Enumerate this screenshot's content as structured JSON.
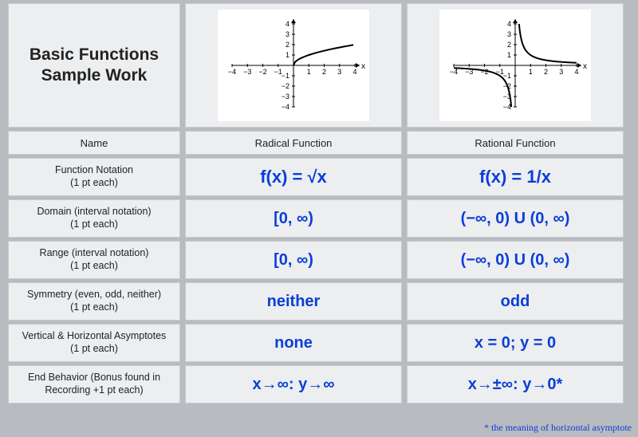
{
  "title": "Basic Functions Sample Work",
  "headers": {
    "name": "Name",
    "colA": "Radical Function",
    "colB": "Rational Function"
  },
  "rows": [
    {
      "label": "Function Notation\n(1 pt each)",
      "a": "f(x) = √x",
      "b": "f(x) = 1/x"
    },
    {
      "label": "Domain (interval notation)\n(1 pt each)",
      "a": "[0, ∞)",
      "b": "(−∞, 0) U (0, ∞)"
    },
    {
      "label": "Range (interval notation)\n(1 pt each)",
      "a": "[0, ∞)",
      "b": "(−∞, 0) U (0, ∞)"
    },
    {
      "label": "Symmetry (even, odd, neither)\n(1 pt each)",
      "a": "neither",
      "b": "odd"
    },
    {
      "label": "Vertical & Horizontal Asymptotes\n(1 pt each)",
      "a": "none",
      "b": "x = 0; y = 0"
    },
    {
      "label": "End Behavior (Bonus found in Recording +1 pt each)",
      "a": "x→∞: y→∞",
      "b": "x→±∞: y→0*"
    }
  ],
  "footnote": "* the meaning of horizontal asymptote",
  "graphs": {
    "axis": {
      "xmin": -4,
      "xmax": 4,
      "ymin": -4,
      "ymax": 4,
      "xticks": [
        -4,
        -3,
        -2,
        -1,
        1,
        2,
        3,
        4
      ],
      "yticks": [
        -4,
        -3,
        -2,
        -1,
        1,
        2,
        3,
        4
      ],
      "axis_color": "#000000",
      "tick_fontsize": 9,
      "curve_color": "#000000",
      "curve_width": 2,
      "bg": "#ffffff"
    },
    "radical": {
      "type": "sqrt",
      "domain": [
        0,
        4
      ]
    },
    "rational": {
      "type": "reciprocal",
      "branches": [
        [
          -4,
          -0.25
        ],
        [
          0.25,
          4
        ]
      ]
    }
  },
  "colors": {
    "answer": "#0a3fd6",
    "cell_bg": "#eceef0",
    "page_bg": "#b8bbc0"
  }
}
